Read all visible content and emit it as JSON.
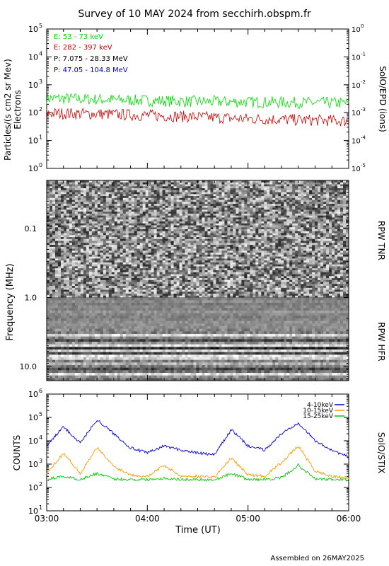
{
  "title": "Survey of 10 MAY 2024 from secchirh.obspm.fr",
  "footer": "Assembled on 26MAY2025",
  "chart_data": [
    {
      "type": "line",
      "panel": "particles",
      "ylabel_left": "Particles/(s cm2 sr Mev)",
      "ylabel_left_sub": "Electrons",
      "ylabel_right": "SolO/EPD (ions)",
      "yscale": "log",
      "ylim": [
        1,
        100000
      ],
      "yticks": [
        "10^0",
        "10^1",
        "10^2",
        "10^3",
        "10^4",
        "10^5"
      ],
      "ylim_right": [
        1e-05,
        1
      ],
      "yticks_right": [
        "10^-5",
        "10^-4",
        "10^-3",
        "10^-2",
        "10^-1",
        "10^0"
      ],
      "x_range": [
        "03:00",
        "06:00"
      ],
      "legend": [
        {
          "label": "E: 53 - 73 keV",
          "color": "#00dd00"
        },
        {
          "label": "E: 282 - 397 keV",
          "color": "#cc0000"
        },
        {
          "label": "P: 7.075 - 28.33 MeV",
          "color": "#000000"
        },
        {
          "label": "P: 47.05 - 104.8 MeV",
          "color": "#0000cc"
        }
      ],
      "series": [
        {
          "name": "E: 53 - 73 keV",
          "color": "#00dd00",
          "x": [
            "03:00",
            "03:30",
            "04:00",
            "04:30",
            "05:00",
            "05:30",
            "06:00"
          ],
          "values": [
            330,
            300,
            270,
            250,
            240,
            230,
            220
          ]
        },
        {
          "name": "E: 282 - 397 keV",
          "color": "#cc0000",
          "x": [
            "03:00",
            "03:30",
            "04:00",
            "04:30",
            "05:00",
            "05:30",
            "06:00"
          ],
          "values": [
            95,
            90,
            80,
            70,
            60,
            55,
            50
          ]
        }
      ]
    },
    {
      "type": "heatmap",
      "panel": "radio",
      "ylabel": "Frequency (MHz)",
      "yscale": "log",
      "yticks": [
        "0.1",
        "1.0",
        "10.0"
      ],
      "ylim": [
        0.02,
        16
      ],
      "labels_right": [
        "RPW TNR",
        "RPW HFR"
      ],
      "x_range": [
        "03:00",
        "06:00"
      ]
    },
    {
      "type": "line",
      "panel": "stix",
      "ylabel_left": "COUNTS",
      "ylabel_right": "SolO/STIX",
      "xlabel": "Time (UT)",
      "yscale": "log",
      "ylim": [
        10,
        1000000
      ],
      "yticks": [
        "10^1",
        "10^2",
        "10^3",
        "10^4",
        "10^5",
        "10^6"
      ],
      "xticks": [
        "03:00",
        "04:00",
        "05:00",
        "06:00"
      ],
      "legend": [
        {
          "label": "4-10keV",
          "color": "#0000cc"
        },
        {
          "label": "10-15keV",
          "color": "#ff9900"
        },
        {
          "label": "15-25keV",
          "color": "#00cc00"
        }
      ],
      "series": [
        {
          "name": "4-10keV",
          "color": "#0000cc",
          "x": [
            "03:00",
            "03:10",
            "03:20",
            "03:30",
            "03:40",
            "03:50",
            "04:00",
            "04:10",
            "04:20",
            "04:30",
            "04:40",
            "04:50",
            "05:00",
            "05:10",
            "05:20",
            "05:30",
            "05:40",
            "05:50",
            "06:00"
          ],
          "values": [
            6000,
            40000,
            8000,
            80000,
            20000,
            5000,
            3000,
            6000,
            4000,
            3000,
            2500,
            30000,
            6000,
            4000,
            20000,
            60000,
            10000,
            4000,
            2000
          ]
        },
        {
          "name": "10-15keV",
          "color": "#ff9900",
          "x": [
            "03:00",
            "03:10",
            "03:20",
            "03:30",
            "03:40",
            "03:50",
            "04:00",
            "04:10",
            "04:20",
            "04:30",
            "04:40",
            "04:50",
            "05:00",
            "05:10",
            "05:20",
            "05:30",
            "05:40",
            "05:50",
            "06:00"
          ],
          "values": [
            400,
            3000,
            400,
            5000,
            800,
            350,
            300,
            900,
            300,
            300,
            280,
            1800,
            350,
            300,
            1200,
            6000,
            500,
            300,
            250
          ]
        },
        {
          "name": "15-25keV",
          "color": "#00cc00",
          "x": [
            "03:00",
            "03:10",
            "03:20",
            "03:30",
            "03:40",
            "03:50",
            "04:00",
            "04:10",
            "04:20",
            "04:30",
            "04:40",
            "04:50",
            "05:00",
            "05:10",
            "05:20",
            "05:30",
            "05:40",
            "05:50",
            "06:00"
          ],
          "values": [
            220,
            300,
            220,
            400,
            230,
            220,
            220,
            250,
            220,
            220,
            210,
            400,
            220,
            220,
            260,
            900,
            230,
            220,
            210
          ]
        }
      ]
    }
  ]
}
